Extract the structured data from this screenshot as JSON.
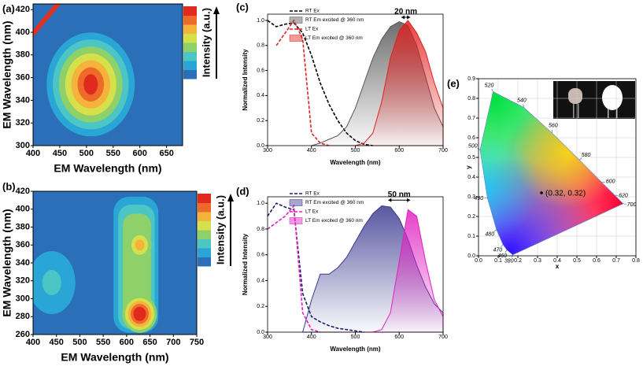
{
  "chart_data": [
    {
      "type": "contour",
      "panel": "(a)",
      "xlabel": "EM Wavelength (nm)",
      "ylabel": "EM Wavelength (nm)",
      "colorbar_label": "Intensity (a.u.)",
      "xlim": [
        400,
        680
      ],
      "xticks": [
        400,
        450,
        500,
        550,
        600,
        650
      ],
      "ylim": [
        300,
        425
      ],
      "yticks": [
        300,
        320,
        340,
        360,
        380,
        400,
        420
      ],
      "peaks": [
        {
          "x": 508,
          "y": 354
        }
      ]
    },
    {
      "type": "contour",
      "panel": "(b)",
      "xlabel": "EM Wavelength (nm)",
      "ylabel": "EM Wavelength (nm)",
      "colorbar_label": "Intensity (a.u.)",
      "xlim": [
        400,
        750
      ],
      "xticks": [
        400,
        450,
        500,
        550,
        600,
        650,
        700,
        750
      ],
      "ylim": [
        260,
        420
      ],
      "yticks": [
        260,
        280,
        300,
        320,
        340,
        360,
        380,
        400,
        420
      ],
      "peaks": [
        {
          "x": 628,
          "y": 283
        },
        {
          "x": 628,
          "y": 360
        },
        {
          "x": 440,
          "y": 318
        }
      ]
    },
    {
      "type": "line",
      "panel": "(c)",
      "xlabel": "Wavelength (nm)",
      "ylabel": "Normalized Intensity",
      "legend": "upper left",
      "annotation": {
        "text": "20 nm",
        "x": [
          605,
          625
        ]
      },
      "x": [
        300,
        320,
        340,
        360,
        380,
        400,
        420,
        440,
        460,
        480,
        500,
        520,
        540,
        560,
        580,
        600,
        620,
        640,
        660,
        680,
        700
      ],
      "xlim": [
        300,
        700
      ],
      "xticks": [
        300,
        400,
        500,
        600,
        700
      ],
      "ylim": [
        0,
        1.05
      ],
      "yticks": [
        {
          "value": 0,
          "label": "0.0"
        },
        0.2,
        0.4,
        0.6,
        0.8,
        {
          "value": 1,
          "label": "1.0"
        }
      ],
      "series": [
        {
          "name": "RT Ex",
          "color": "#000000",
          "style": "dashed",
          "values": [
            1.0,
            0.95,
            0.97,
            0.98,
            0.9,
            0.72,
            0.5,
            0.33,
            0.2,
            0.1,
            0.04,
            0.01,
            0.0,
            null,
            null,
            null,
            null,
            null,
            null,
            null,
            null
          ]
        },
        {
          "name": "RT Em excited @ 360 nm",
          "color": "#555555",
          "style": "area",
          "values": [
            null,
            null,
            null,
            null,
            null,
            0.0,
            0.02,
            0.05,
            0.08,
            0.15,
            0.3,
            0.5,
            0.7,
            0.85,
            0.95,
            0.99,
            0.96,
            0.8,
            0.55,
            0.3,
            0.15
          ]
        },
        {
          "name": "LT Ex",
          "color": "#e02020",
          "style": "dashed",
          "values": [
            null,
            0.8,
            0.9,
            1.0,
            0.85,
            0.1,
            0.02,
            0.0,
            null,
            null,
            null,
            null,
            null,
            null,
            null,
            null,
            null,
            null,
            null,
            null,
            null
          ]
        },
        {
          "name": "LT Em excited @ 360 nm",
          "color": "#e02020",
          "style": "area",
          "values": [
            null,
            null,
            null,
            null,
            null,
            null,
            null,
            null,
            null,
            0.0,
            0.0,
            0.02,
            0.1,
            0.35,
            0.7,
            0.92,
            1.0,
            0.9,
            0.75,
            0.5,
            0.3
          ]
        }
      ]
    },
    {
      "type": "line",
      "panel": "(d)",
      "xlabel": "Wavelength (nm)",
      "ylabel": "Normalized Intensity",
      "legend": "upper left",
      "annotation": {
        "text": "50 nm",
        "x": [
          575,
          625
        ]
      },
      "x": [
        300,
        320,
        340,
        360,
        380,
        400,
        420,
        440,
        460,
        480,
        500,
        520,
        540,
        560,
        580,
        600,
        620,
        640,
        660,
        680,
        700
      ],
      "xlim": [
        300,
        700
      ],
      "xticks": [
        300,
        400,
        500,
        600,
        700
      ],
      "ylim": [
        0,
        1.05
      ],
      "yticks": [
        {
          "value": 0,
          "label": "0.0"
        },
        0.2,
        0.4,
        0.6,
        0.8,
        {
          "value": 1,
          "label": "1.0"
        }
      ],
      "series": [
        {
          "name": "RT Ex",
          "color": "#1a1a70",
          "style": "dashed",
          "values": [
            0.9,
            1.0,
            0.97,
            0.95,
            0.3,
            0.12,
            0.08,
            0.05,
            0.03,
            0.02,
            0.01,
            0.0,
            null,
            null,
            null,
            null,
            null,
            null,
            null,
            null,
            null
          ]
        },
        {
          "name": "RT Em excited @ 360 nm",
          "color": "#3a3a90",
          "style": "area",
          "values": [
            null,
            null,
            null,
            null,
            0.0,
            0.25,
            0.45,
            0.45,
            0.5,
            0.58,
            0.7,
            0.82,
            0.92,
            0.98,
            0.97,
            0.88,
            0.72,
            0.52,
            0.35,
            0.22,
            0.15
          ]
        },
        {
          "name": "LT Ex",
          "color": "#e020c0",
          "style": "dashed",
          "values": [
            0.8,
            0.85,
            0.9,
            0.98,
            0.15,
            0.02,
            0.0,
            null,
            null,
            null,
            null,
            null,
            null,
            null,
            null,
            null,
            null,
            null,
            null,
            null,
            null
          ]
        },
        {
          "name": "LT Em excited @ 360 nm",
          "color": "#e020c0",
          "style": "area",
          "values": [
            null,
            null,
            null,
            null,
            null,
            null,
            null,
            null,
            0.0,
            0.0,
            0.0,
            0.0,
            0.0,
            0.02,
            0.15,
            0.55,
            0.95,
            0.9,
            0.55,
            0.25,
            0.12
          ]
        }
      ]
    },
    {
      "type": "cie",
      "panel": "(e)",
      "xlabel": "x",
      "ylabel": "y",
      "grid": true,
      "xlim": [
        0,
        0.8
      ],
      "xticks": [
        {
          "value": 0,
          "label": "0.0"
        },
        0.1,
        0.2,
        0.3,
        0.4,
        0.5,
        0.6,
        0.7,
        0.8
      ],
      "ylim": [
        0,
        0.9
      ],
      "yticks": [
        {
          "value": 0,
          "label": "0.0"
        },
        0.1,
        0.2,
        0.3,
        0.4,
        0.5,
        0.6,
        0.7,
        0.8,
        0.9
      ],
      "locus": [
        {
          "wavelength": 380,
          "x": 0.174,
          "y": 0.005
        },
        {
          "wavelength": 460,
          "x": 0.144,
          "y": 0.03
        },
        {
          "wavelength": 470,
          "x": 0.124,
          "y": 0.058
        },
        {
          "wavelength": 480,
          "x": 0.091,
          "y": 0.133
        },
        {
          "wavelength": 490,
          "x": 0.045,
          "y": 0.295
        },
        {
          "wavelength": 500,
          "x": 0.008,
          "y": 0.538
        },
        {
          "wavelength": 520,
          "x": 0.074,
          "y": 0.834
        },
        {
          "wavelength": 540,
          "x": 0.23,
          "y": 0.754
        },
        {
          "wavelength": 560,
          "x": 0.373,
          "y": 0.625
        },
        {
          "wavelength": 580,
          "x": 0.513,
          "y": 0.487
        },
        {
          "wavelength": 600,
          "x": 0.627,
          "y": 0.373
        },
        {
          "wavelength": 620,
          "x": 0.692,
          "y": 0.308
        },
        {
          "wavelength": 700,
          "x": 0.735,
          "y": 0.265
        }
      ],
      "point": {
        "x": 0.32,
        "y": 0.32,
        "label": "(0.32, 0.32)"
      }
    }
  ]
}
